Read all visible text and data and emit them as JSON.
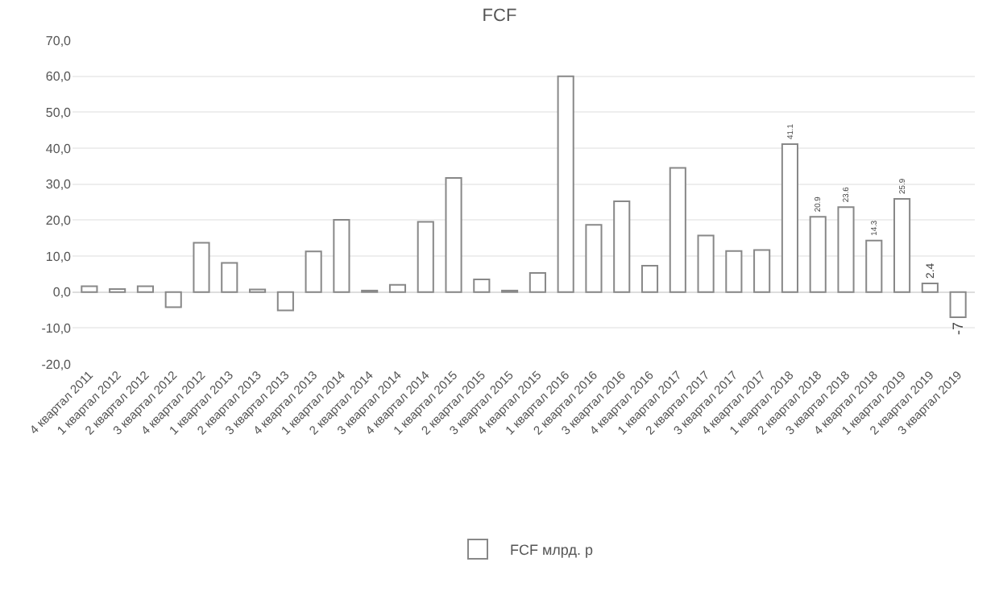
{
  "chart_data": {
    "type": "bar",
    "title": "FCF",
    "categories": [
      "4 квартал 2011",
      "1 квартал 2012",
      "2 квартал 2012",
      "3 квартал 2012",
      "4 квартал 2012",
      "1 квартал 2013",
      "2 квартал 2013",
      "3 квартал 2013",
      "4 квартал 2013",
      "1 квартал 2014",
      "2 квартал 2014",
      "3 квартал 2014",
      "4 квартал 2014",
      "1 квартал 2015",
      "2 квартал 2015",
      "3 квартал 2015",
      "4 квартал 2015",
      "1 квартал 2016",
      "2 квартал 2016",
      "3 квартал 2016",
      "4 квартал 2016",
      "1 квартал 2017",
      "2 квартал 2017",
      "3 квартал 2017",
      "4 квартал 2017",
      "1 квартал 2018",
      "2 квартал 2018",
      "3 квартал 2018",
      "4 квартал 2018",
      "1 квартал 2019",
      "2 квартал 2019",
      "3 квартал 2019"
    ],
    "series": [
      {
        "name": "FCF млрд. р",
        "color": "#ffffff",
        "values": [
          1.6,
          0.8,
          1.6,
          -4.2,
          13.7,
          8.1,
          0.7,
          -5.1,
          11.3,
          20.1,
          0.4,
          2.0,
          19.5,
          31.7,
          3.5,
          0.4,
          5.3,
          60.0,
          18.7,
          25.2,
          7.3,
          34.5,
          15.7,
          11.4,
          11.7,
          41.1,
          20.9,
          23.6,
          14.3,
          25.9,
          2.4,
          -7
        ],
        "value_labels": [
          null,
          null,
          null,
          null,
          null,
          null,
          null,
          null,
          null,
          null,
          null,
          null,
          null,
          null,
          null,
          null,
          null,
          null,
          null,
          null,
          null,
          null,
          null,
          null,
          null,
          "41.1",
          "20.9",
          "23.6",
          "14.3",
          "25.9",
          "2.4",
          "-7"
        ]
      }
    ],
    "ylim": [
      -20,
      70
    ],
    "yticks": [
      {
        "value": -20,
        "label": "-20,0"
      },
      {
        "value": -10,
        "label": "-10,0"
      },
      {
        "value": 0,
        "label": "0,0"
      },
      {
        "value": 10,
        "label": "10,0"
      },
      {
        "value": 20,
        "label": "20,0"
      },
      {
        "value": 30,
        "label": "30,0"
      },
      {
        "value": 40,
        "label": "40,0"
      },
      {
        "value": 50,
        "label": "50,0"
      },
      {
        "value": 60,
        "label": "60,0"
      },
      {
        "value": 70,
        "label": "70,0"
      }
    ],
    "grid": "y",
    "legend": "bottom"
  }
}
